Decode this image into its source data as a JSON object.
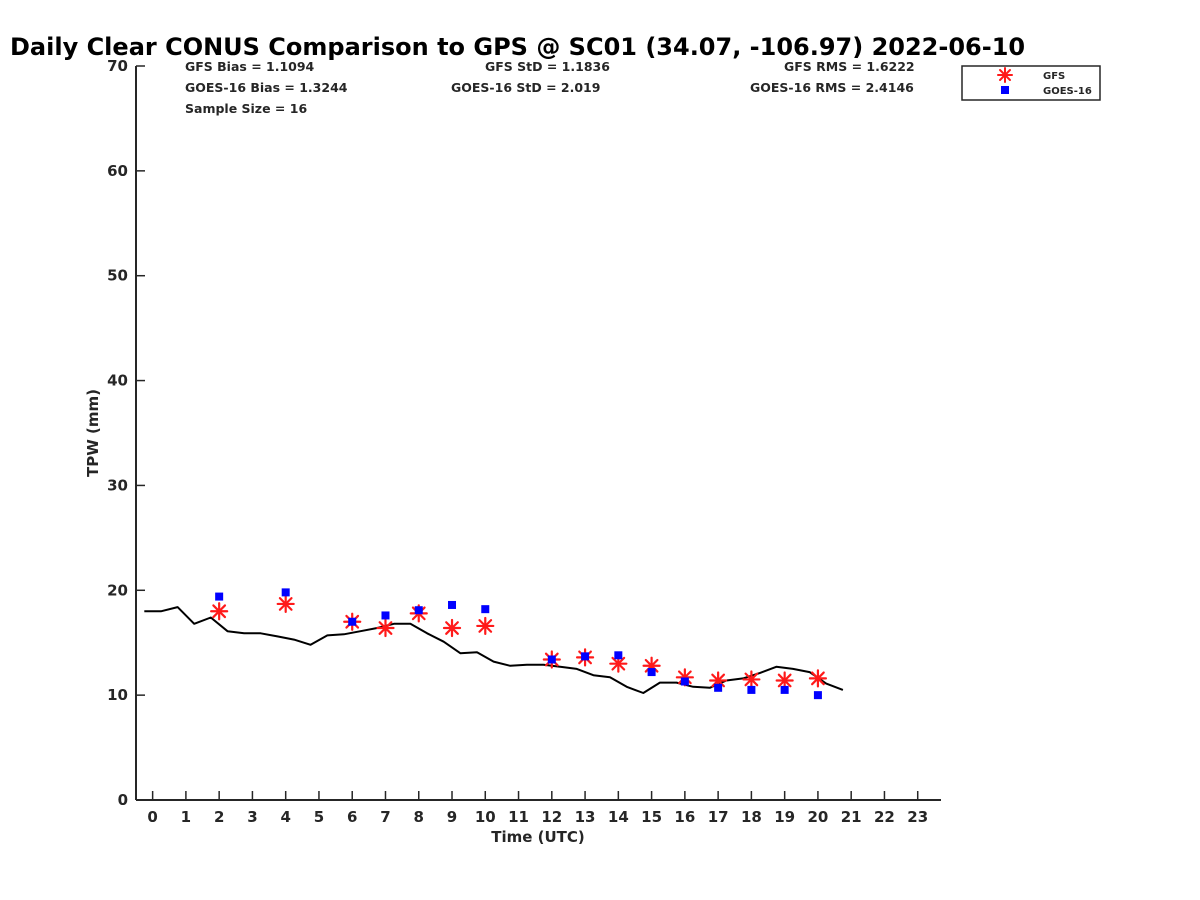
{
  "chart_data": {
    "type": "scatter",
    "title": "Daily Clear CONUS Comparison to GPS @ SC01 (34.07, -106.97) 2022-06-10",
    "xlabel": "Time (UTC)",
    "ylabel": "TPW (mm)",
    "xlim": [
      -0.5,
      23.7
    ],
    "ylim": [
      0,
      70
    ],
    "x_ticks": [
      0,
      1,
      2,
      3,
      4,
      5,
      6,
      7,
      8,
      9,
      10,
      11,
      12,
      13,
      14,
      15,
      16,
      17,
      18,
      19,
      20,
      21,
      22,
      23
    ],
    "y_ticks": [
      0,
      10,
      20,
      30,
      40,
      50,
      60,
      70
    ],
    "grid": false,
    "legend_position": "top-right",
    "stats": {
      "gfs_bias": "GFS Bias = 1.1094",
      "goes_bias": "GOES-16 Bias = 1.3244",
      "sample_size": "Sample Size = 16",
      "gfs_std": "GFS StD = 1.1836",
      "goes_std": "GOES-16 StD = 2.019",
      "gfs_rms": "GFS RMS = 1.6222",
      "goes_rms": "GOES-16 RMS = 2.4146"
    },
    "series": [
      {
        "name": "GFS",
        "marker": "asterisk",
        "color": "#ff1a1a",
        "points": [
          [
            2,
            18.0
          ],
          [
            4,
            18.7
          ],
          [
            6,
            17.0
          ],
          [
            7,
            16.4
          ],
          [
            8,
            17.8
          ],
          [
            9,
            16.4
          ],
          [
            10,
            16.6
          ],
          [
            12,
            13.4
          ],
          [
            13,
            13.6
          ],
          [
            14,
            13.0
          ],
          [
            15,
            12.8
          ],
          [
            16,
            11.7
          ],
          [
            17,
            11.4
          ],
          [
            18,
            11.5
          ],
          [
            19,
            11.4
          ],
          [
            20,
            11.6
          ]
        ]
      },
      {
        "name": "GOES-16",
        "marker": "square",
        "color": "#0000ff",
        "points": [
          [
            2,
            19.4
          ],
          [
            4,
            19.8
          ],
          [
            6,
            17.0
          ],
          [
            7,
            17.6
          ],
          [
            8,
            18.1
          ],
          [
            9,
            18.6
          ],
          [
            10,
            18.2
          ],
          [
            12,
            13.4
          ],
          [
            13,
            13.7
          ],
          [
            14,
            13.8
          ],
          [
            15,
            12.2
          ],
          [
            16,
            11.3
          ],
          [
            17,
            10.7
          ],
          [
            18,
            10.5
          ],
          [
            19,
            10.5
          ],
          [
            20,
            10.0
          ]
        ]
      },
      {
        "marker": "line",
        "color": "#000000",
        "points": [
          [
            -0.25,
            18.0
          ],
          [
            0.25,
            18.0
          ],
          [
            0.75,
            18.4
          ],
          [
            1.25,
            16.8
          ],
          [
            1.75,
            17.4
          ],
          [
            2.25,
            16.1
          ],
          [
            2.75,
            15.9
          ],
          [
            3.25,
            15.9
          ],
          [
            3.75,
            15.6
          ],
          [
            4.25,
            15.3
          ],
          [
            4.75,
            14.8
          ],
          [
            5.25,
            15.7
          ],
          [
            5.75,
            15.8
          ],
          [
            6.25,
            16.1
          ],
          [
            6.75,
            16.4
          ],
          [
            7.25,
            16.8
          ],
          [
            7.75,
            16.8
          ],
          [
            8.25,
            15.9
          ],
          [
            8.75,
            15.1
          ],
          [
            9.25,
            14.0
          ],
          [
            9.75,
            14.1
          ],
          [
            10.25,
            13.2
          ],
          [
            10.75,
            12.8
          ],
          [
            11.25,
            12.9
          ],
          [
            11.75,
            12.9
          ],
          [
            12.25,
            12.7
          ],
          [
            12.75,
            12.5
          ],
          [
            13.25,
            11.9
          ],
          [
            13.75,
            11.7
          ],
          [
            14.25,
            10.8
          ],
          [
            14.75,
            10.2
          ],
          [
            15.25,
            11.2
          ],
          [
            15.75,
            11.2
          ],
          [
            16.25,
            10.8
          ],
          [
            16.75,
            10.7
          ],
          [
            17.25,
            11.4
          ],
          [
            17.75,
            11.6
          ],
          [
            18.25,
            12.1
          ],
          [
            18.75,
            12.7
          ],
          [
            19.25,
            12.5
          ],
          [
            19.75,
            12.2
          ],
          [
            20.25,
            11.1
          ],
          [
            20.75,
            10.5
          ]
        ]
      }
    ]
  }
}
